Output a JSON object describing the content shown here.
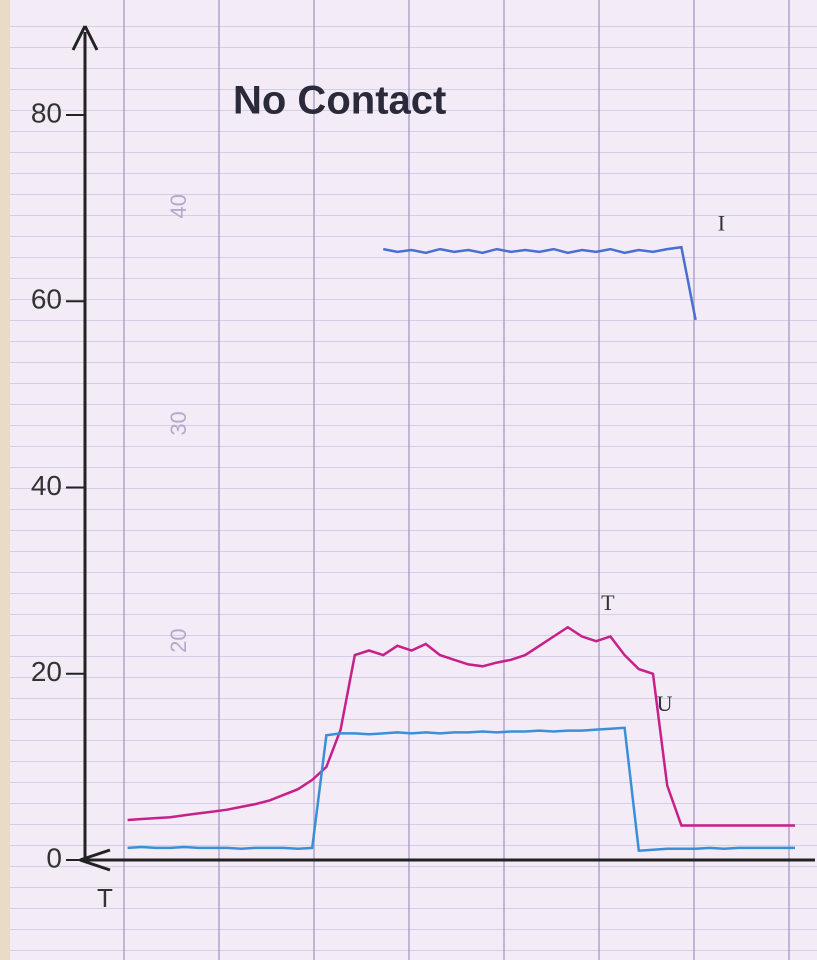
{
  "chart_data": {
    "type": "line",
    "title": "No Contact",
    "x_label": "T",
    "x": [
      6,
      8,
      10,
      12,
      14,
      16,
      18,
      20,
      22,
      24,
      26,
      28,
      30,
      32,
      34,
      36,
      38,
      40,
      42,
      44,
      46,
      48,
      50,
      52,
      54,
      56,
      58,
      60,
      62,
      64,
      66,
      68,
      70,
      72,
      74,
      76,
      78,
      80,
      82,
      84,
      86,
      88,
      90,
      92,
      94,
      96,
      98,
      100
    ],
    "xlim": [
      0,
      100
    ],
    "ylim": [
      0,
      80
    ],
    "yticks": [
      0,
      20,
      40,
      60,
      80
    ],
    "y2lim": [
      9.9,
      44.2
    ],
    "y2ticks": [
      20,
      30,
      40
    ],
    "series": [
      {
        "name": "I",
        "color": "#4a6fd0",
        "values": [
          null,
          null,
          null,
          null,
          null,
          null,
          null,
          null,
          null,
          null,
          null,
          null,
          null,
          null,
          null,
          null,
          null,
          null,
          65.6,
          65.3,
          65.5,
          65.2,
          65.6,
          65.3,
          65.5,
          65.2,
          65.6,
          65.3,
          65.5,
          65.3,
          65.6,
          65.2,
          65.5,
          65.3,
          65.6,
          65.2,
          65.5,
          65.3,
          65.6,
          65.8,
          58,
          null,
          null,
          null,
          null,
          null,
          null,
          null
        ]
      },
      {
        "name": "T",
        "color": "#c8208a",
        "values": [
          4.3,
          4.4,
          4.5,
          4.6,
          4.8,
          5.0,
          5.2,
          5.4,
          5.7,
          6.0,
          6.4,
          7.0,
          7.6,
          8.6,
          10,
          14,
          22,
          22.5,
          22,
          23,
          22.5,
          23.2,
          22,
          21.5,
          21,
          20.8,
          21.2,
          21.5,
          22,
          23,
          24,
          25,
          24,
          23.5,
          24,
          22,
          20.5,
          20,
          8,
          3.7,
          3.7,
          3.7,
          3.7,
          3.7,
          3.7,
          3.7,
          3.7,
          3.7
        ]
      },
      {
        "name": "U",
        "color": "#3a8fd8",
        "values": [
          1.3,
          1.4,
          1.3,
          1.3,
          1.4,
          1.3,
          1.3,
          1.3,
          1.2,
          1.3,
          1.3,
          1.3,
          1.2,
          1.3,
          13.4,
          13.6,
          13.6,
          13.5,
          13.6,
          13.7,
          13.6,
          13.7,
          13.6,
          13.7,
          13.7,
          13.8,
          13.7,
          13.8,
          13.8,
          13.9,
          13.8,
          13.9,
          13.9,
          14.0,
          14.1,
          14.2,
          1.0,
          1.1,
          1.2,
          1.2,
          1.2,
          1.3,
          1.2,
          1.3,
          1.3,
          1.3,
          1.3,
          1.3
        ]
      }
    ]
  }
}
